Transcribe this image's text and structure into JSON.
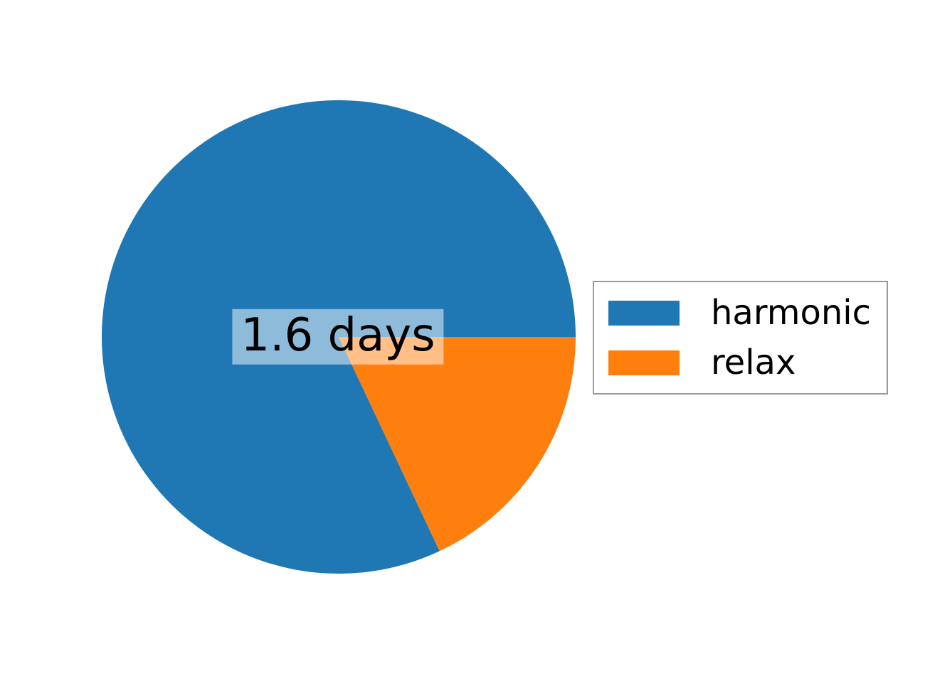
{
  "figure": {
    "background": "#ffffff"
  },
  "chart_data": {
    "type": "pie",
    "title": "",
    "center_label": "1.6 days",
    "center_label_background": "rgba(255,255,255,0.5)",
    "start_angle_deg": 0,
    "direction": "counterclockwise",
    "slices": [
      {
        "name": "harmonic",
        "fraction": 0.82,
        "color": "#1f77b4"
      },
      {
        "name": "relax",
        "fraction": 0.18,
        "color": "#ff7f0e"
      }
    ],
    "legend": {
      "position": "center right",
      "border_color": "#999999",
      "entries": [
        {
          "label": "harmonic",
          "color": "#1f77b4"
        },
        {
          "label": "relax",
          "color": "#ff7f0e"
        }
      ]
    }
  }
}
